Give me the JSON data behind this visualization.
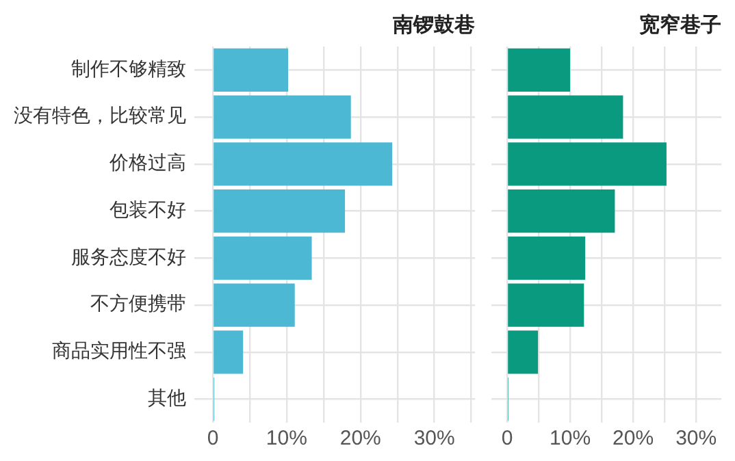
{
  "chart_data": [
    {
      "type": "bar",
      "orientation": "horizontal",
      "title": "南锣鼓巷",
      "categories": [
        "制作不够精致",
        "没有特色，比较常见",
        "价格过高",
        "包装不好",
        "服务态度不好",
        "不方便携带",
        "商品实用性不强",
        "其他"
      ],
      "values": [
        10.2,
        18.7,
        24.3,
        17.9,
        13.4,
        11.1,
        4.1,
        0.2
      ],
      "color": "#4db8d3",
      "xlim": [
        -2.5,
        35.5
      ],
      "xticks": [
        0,
        {
          "value": 5,
          "label": null
        },
        {
          "value": 10,
          "label": "10%"
        },
        {
          "value": 15,
          "label": null
        },
        {
          "value": 20,
          "label": "20%"
        },
        {
          "value": 25,
          "label": null
        },
        {
          "value": 30,
          "label": "30%"
        },
        {
          "value": 35,
          "label": null
        }
      ],
      "grid": true,
      "legend": false
    },
    {
      "type": "bar",
      "orientation": "horizontal",
      "title": "宽窄巷子",
      "categories": [
        null,
        null,
        null,
        null,
        null,
        null,
        null,
        null
      ],
      "values": [
        10.0,
        18.4,
        25.3,
        17.1,
        12.4,
        12.2,
        4.9,
        0.2
      ],
      "color": "#0a9a80",
      "xlim": [
        -2.5,
        34
      ],
      "xticks": [
        0,
        {
          "value": 5,
          "label": null
        },
        {
          "value": 10,
          "label": "10%"
        },
        {
          "value": 15,
          "label": null
        },
        {
          "value": 20,
          "label": "20%"
        },
        {
          "value": 25,
          "label": null
        },
        {
          "value": 30,
          "label": "30%"
        }
      ],
      "grid": true,
      "legend": false,
      "tick_labels": "x"
    }
  ]
}
